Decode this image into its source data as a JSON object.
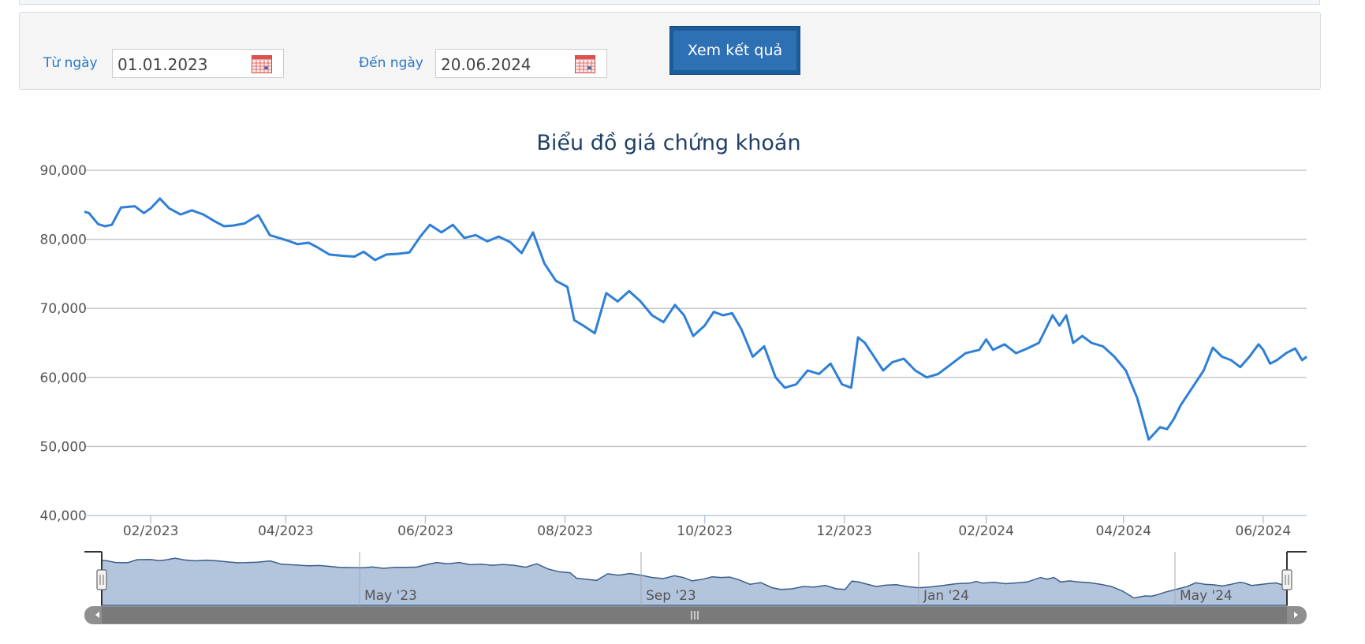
{
  "filter": {
    "from_label": "Từ ngày",
    "from_value": "01.01.2023",
    "to_label": "Đến ngày",
    "to_value": "20.06.2024",
    "submit_label": "Xem kết quả"
  },
  "chart_data": {
    "type": "line",
    "title": "Biểu đồ giá chứng khoán",
    "xlabel": "",
    "ylabel": "",
    "ylim": [
      40000,
      90000
    ],
    "xlim": [
      "2023-01-03",
      "2024-06-20"
    ],
    "yticks": [
      "90,000",
      "80,000",
      "70,000",
      "60,000",
      "50,000",
      "40,000"
    ],
    "xticks": [
      {
        "date": "2023-02-01",
        "label": "02/2023"
      },
      {
        "date": "2023-04-01",
        "label": "04/2023"
      },
      {
        "date": "2023-06-01",
        "label": "06/2023"
      },
      {
        "date": "2023-08-01",
        "label": "08/2023"
      },
      {
        "date": "2023-10-01",
        "label": "10/2023"
      },
      {
        "date": "2023-12-01",
        "label": "12/2023"
      },
      {
        "date": "2024-02-01",
        "label": "02/2024"
      },
      {
        "date": "2024-04-01",
        "label": "04/2024"
      },
      {
        "date": "2024-06-01",
        "label": "06/2024"
      }
    ],
    "grid": true,
    "series_color": "#2e7fd6",
    "series": [
      {
        "x": [
          "2023-01-03",
          "2023-01-05",
          "2023-01-09",
          "2023-01-12",
          "2023-01-15",
          "2023-01-19",
          "2023-01-25",
          "2023-01-29",
          "2023-02-01",
          "2023-02-05",
          "2023-02-09",
          "2023-02-14",
          "2023-02-19",
          "2023-02-24",
          "2023-03-01",
          "2023-03-05",
          "2023-03-09",
          "2023-03-14",
          "2023-03-20",
          "2023-03-25",
          "2023-03-29",
          "2023-04-02",
          "2023-04-06",
          "2023-04-11",
          "2023-04-15",
          "2023-04-20",
          "2023-04-26",
          "2023-05-01",
          "2023-05-05",
          "2023-05-10",
          "2023-05-15",
          "2023-05-20",
          "2023-05-25",
          "2023-05-30",
          "2023-06-03",
          "2023-06-08",
          "2023-06-13",
          "2023-06-18",
          "2023-06-23",
          "2023-06-28",
          "2023-07-03",
          "2023-07-08",
          "2023-07-13",
          "2023-07-18",
          "2023-07-23",
          "2023-07-28",
          "2023-08-02",
          "2023-08-05",
          "2023-08-09",
          "2023-08-14",
          "2023-08-19",
          "2023-08-24",
          "2023-08-29",
          "2023-09-03",
          "2023-09-08",
          "2023-09-13",
          "2023-09-18",
          "2023-09-22",
          "2023-09-26",
          "2023-10-01",
          "2023-10-05",
          "2023-10-09",
          "2023-10-13",
          "2023-10-17",
          "2023-10-22",
          "2023-10-27",
          "2023-11-01",
          "2023-11-05",
          "2023-11-10",
          "2023-11-15",
          "2023-11-20",
          "2023-11-25",
          "2023-11-30",
          "2023-12-04",
          "2023-12-07",
          "2023-12-10",
          "2023-12-13",
          "2023-12-18",
          "2023-12-22",
          "2023-12-27",
          "2024-01-01",
          "2024-01-06",
          "2024-01-11",
          "2024-01-17",
          "2024-01-23",
          "2024-01-29",
          "2024-02-01",
          "2024-02-04",
          "2024-02-09",
          "2024-02-14",
          "2024-02-19",
          "2024-02-24",
          "2024-03-01",
          "2024-03-04",
          "2024-03-07",
          "2024-03-10",
          "2024-03-14",
          "2024-03-18",
          "2024-03-23",
          "2024-03-28",
          "2024-04-02",
          "2024-04-07",
          "2024-04-12",
          "2024-04-17",
          "2024-04-20",
          "2024-04-23",
          "2024-04-26",
          "2024-04-29",
          "2024-05-02",
          "2024-05-06",
          "2024-05-10",
          "2024-05-14",
          "2024-05-18",
          "2024-05-22",
          "2024-05-26",
          "2024-05-30",
          "2024-06-01",
          "2024-06-04",
          "2024-06-07",
          "2024-06-11",
          "2024-06-15",
          "2024-06-18",
          "2024-06-20"
        ],
        "values": [
          84000,
          83800,
          82200,
          81900,
          82100,
          84600,
          84800,
          83800,
          84500,
          85900,
          84500,
          83600,
          84200,
          83600,
          82600,
          81900,
          82000,
          82300,
          83500,
          80600,
          80200,
          79800,
          79300,
          79500,
          78800,
          77800,
          77600,
          77500,
          78200,
          77000,
          77800,
          77900,
          78100,
          80500,
          82100,
          81000,
          82100,
          80200,
          80600,
          79700,
          80400,
          79600,
          78000,
          81000,
          76500,
          74000,
          73100,
          68300,
          67500,
          66400,
          72200,
          71000,
          72500,
          71000,
          69000,
          68000,
          70500,
          69000,
          66000,
          67500,
          69500,
          69000,
          69300,
          67000,
          63000,
          64500,
          60000,
          58500,
          59000,
          61000,
          60500,
          62000,
          59000,
          58500,
          65800,
          65000,
          63500,
          61000,
          62200,
          62700,
          61000,
          60000,
          60500,
          62000,
          63500,
          64000,
          65500,
          64000,
          64800,
          63500,
          64200,
          65000,
          69000,
          67500,
          69000,
          65000,
          66000,
          65000,
          64500,
          63000,
          61000,
          57000,
          51000,
          52800,
          52500,
          54000,
          56000,
          57500,
          59000,
          61000,
          64300,
          63000,
          62500,
          61500,
          63000,
          64800,
          64000,
          62000,
          62500,
          63500,
          64200,
          62500,
          63000
        ]
      }
    ],
    "navigator_labels": [
      "May '23",
      "Sep '23",
      "Jan '24",
      "May '24"
    ]
  }
}
